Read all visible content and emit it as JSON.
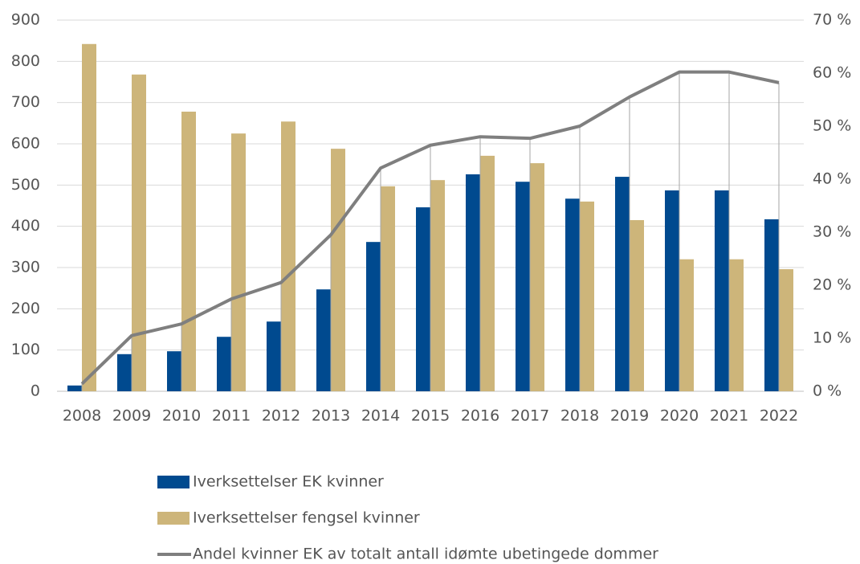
{
  "chart_data": {
    "type": "bar_line",
    "categories": [
      "2008",
      "2009",
      "2010",
      "2011",
      "2012",
      "2013",
      "2014",
      "2015",
      "2016",
      "2017",
      "2018",
      "2019",
      "2020",
      "2021",
      "2022"
    ],
    "series": [
      {
        "name": "Iverksettelser EK kvinner",
        "type": "bar",
        "color": "#004a8f",
        "values": [
          14,
          90,
          97,
          132,
          169,
          247,
          362,
          446,
          526,
          508,
          467,
          520,
          487,
          487,
          417
        ]
      },
      {
        "name": "Iverksettelser fengsel kvinner",
        "type": "bar",
        "color": "#cdb57a",
        "values": [
          842,
          768,
          678,
          625,
          654,
          588,
          497,
          512,
          571,
          553,
          460,
          415,
          320,
          320,
          296
        ]
      },
      {
        "name": "Andel kvinner EK av totalt antall idømte ubetingede dommer",
        "type": "line",
        "axis": "y2",
        "color": "#7f7f7f",
        "values": [
          1.4,
          10.5,
          12.7,
          17.4,
          20.5,
          29.5,
          42.1,
          46.4,
          48.0,
          47.7,
          50.0,
          55.5,
          60.2,
          60.2,
          58.2
        ]
      }
    ],
    "ylim": [
      0,
      900
    ],
    "yticks": [
      0,
      100,
      200,
      300,
      400,
      500,
      600,
      700,
      800,
      900
    ],
    "y2lim": [
      0,
      70
    ],
    "y2ticks": [
      {
        "value": 0,
        "label": "0 %"
      },
      {
        "value": 10,
        "label": "10 %"
      },
      {
        "value": 20,
        "label": "20 %"
      },
      {
        "value": 30,
        "label": "30 %"
      },
      {
        "value": 40,
        "label": "40 %"
      },
      {
        "value": 50,
        "label": "50 %"
      },
      {
        "value": 60,
        "label": "60 %"
      },
      {
        "value": 70,
        "label": "70 %"
      }
    ],
    "grid": true,
    "legend": "bottom"
  }
}
